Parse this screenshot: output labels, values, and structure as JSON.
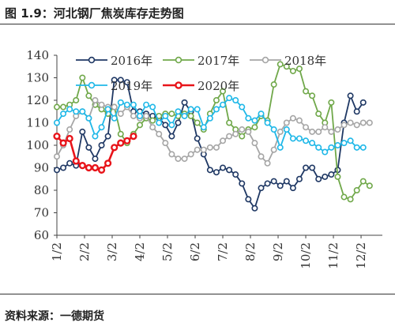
{
  "header": {
    "title": "图 1.9：河北钢厂焦炭库存走势图"
  },
  "footer": {
    "source": "资料来源：一德期货"
  },
  "chart_data": {
    "type": "line",
    "title": "",
    "xlabel": "",
    "ylabel": "",
    "ylim": [
      60,
      140
    ],
    "yticks": [
      60,
      70,
      80,
      90,
      100,
      110,
      120,
      130,
      140
    ],
    "xticks": [
      "1/2",
      "2/2",
      "3/2",
      "4/2",
      "5/2",
      "6/2",
      "7/2",
      "8/2",
      "9/2",
      "10/2",
      "11/2",
      "12/2"
    ],
    "grid": false,
    "legend_position": "top",
    "colors": {
      "2016年": "#1f3864",
      "2017年": "#70a84a",
      "2018年": "#a6a6a6",
      "2019年": "#1fb8e8",
      "2020年": "#e8141a"
    },
    "series": [
      {
        "name": "2016年",
        "week_start": 0,
        "values": [
          89,
          90,
          92,
          91,
          106,
          99,
          94,
          100,
          104,
          129,
          129,
          128,
          115,
          115,
          114,
          113,
          112,
          109,
          104,
          110,
          119,
          115,
          103,
          96,
          89,
          88,
          90,
          89,
          87,
          83,
          76,
          72,
          81,
          83,
          84,
          82,
          84,
          81,
          85,
          90,
          90,
          85,
          86,
          87,
          89,
          110,
          122,
          115,
          119
        ]
      },
      {
        "name": "2017年",
        "week_start": 0,
        "values": [
          117,
          117,
          118,
          120,
          130,
          122,
          118,
          116,
          114,
          117,
          105,
          101,
          105,
          109,
          112,
          111,
          113,
          114,
          114,
          113,
          114,
          113,
          110,
          107,
          114,
          120,
          124,
          110,
          107,
          104,
          107,
          108,
          113,
          111,
          127,
          136,
          135,
          133,
          134,
          124,
          122,
          114,
          110,
          119,
          86,
          77,
          76,
          80,
          84,
          82
        ]
      },
      {
        "name": "2018年",
        "week_start": 0,
        "values": [
          95,
          100,
          107,
          113,
          115,
          112,
          120,
          118,
          117,
          117,
          114,
          117,
          113,
          112,
          113,
          108,
          105,
          101,
          96,
          94,
          94,
          96,
          98,
          98,
          99,
          99,
          102,
          104,
          105,
          107,
          106,
          101,
          95,
          92,
          98,
          106,
          110,
          112,
          111,
          108,
          106,
          106,
          108,
          106,
          107,
          109,
          110,
          109,
          110,
          110
        ]
      },
      {
        "name": "2019年",
        "week_start": 0,
        "values": [
          110,
          114,
          116,
          115,
          115,
          112,
          104,
          108,
          116,
          112,
          119,
          118,
          118,
          113,
          118,
          117,
          110,
          113,
          109,
          115,
          113,
          116,
          116,
          108,
          112,
          116,
          118,
          121,
          120,
          117,
          112,
          111,
          114,
          110,
          107,
          99,
          107,
          103,
          103,
          102,
          101,
          99,
          97,
          99,
          100,
          101,
          102,
          99,
          99
        ]
      },
      {
        "name": "2020年",
        "week_start": 0,
        "values": [
          104,
          101,
          103,
          93,
          91,
          90,
          90,
          89,
          92,
          99,
          101,
          102,
          104
        ]
      }
    ]
  }
}
